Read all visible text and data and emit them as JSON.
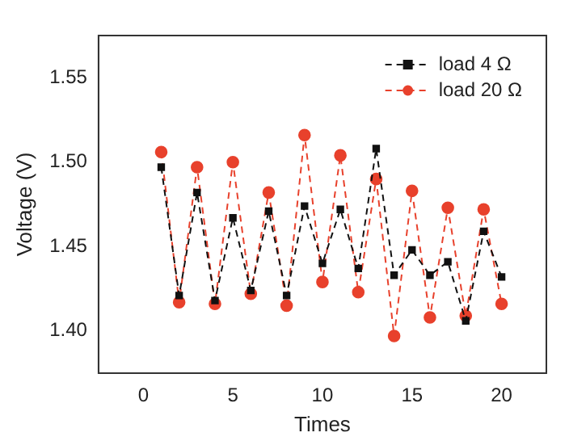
{
  "chart_data": {
    "type": "line",
    "xlabel": "Times",
    "ylabel": "Voltage (V)",
    "x": [
      1,
      2,
      3,
      4,
      5,
      6,
      7,
      8,
      9,
      10,
      11,
      12,
      13,
      14,
      15,
      16,
      17,
      18,
      19,
      20
    ],
    "series": [
      {
        "name": "load 4 Ω",
        "color": "#111111",
        "marker": "square",
        "values": [
          1.497,
          1.421,
          1.482,
          1.418,
          1.467,
          1.424,
          1.471,
          1.421,
          1.474,
          1.44,
          1.472,
          1.437,
          1.508,
          1.433,
          1.448,
          1.433,
          1.441,
          1.406,
          1.459,
          1.432
        ]
      },
      {
        "name": "load 20 Ω",
        "color": "#e8412c",
        "marker": "circle",
        "values": [
          1.506,
          1.417,
          1.497,
          1.416,
          1.5,
          1.422,
          1.482,
          1.415,
          1.516,
          1.429,
          1.504,
          1.423,
          1.49,
          1.397,
          1.483,
          1.408,
          1.473,
          1.409,
          1.472,
          1.416
        ]
      }
    ],
    "xlim": [
      -2.5,
      22.5
    ],
    "xticks": [
      0,
      5,
      10,
      15,
      20
    ],
    "ylim": [
      1.375,
      1.575
    ],
    "yticks": [
      {
        "value": 1.4,
        "label": "1.40"
      },
      {
        "value": 1.45,
        "label": "1.45"
      },
      {
        "value": 1.5,
        "label": "1.50"
      },
      {
        "value": 1.55,
        "label": "1.55"
      }
    ],
    "line_style": "dashed",
    "grid": false,
    "legend": "top right"
  }
}
